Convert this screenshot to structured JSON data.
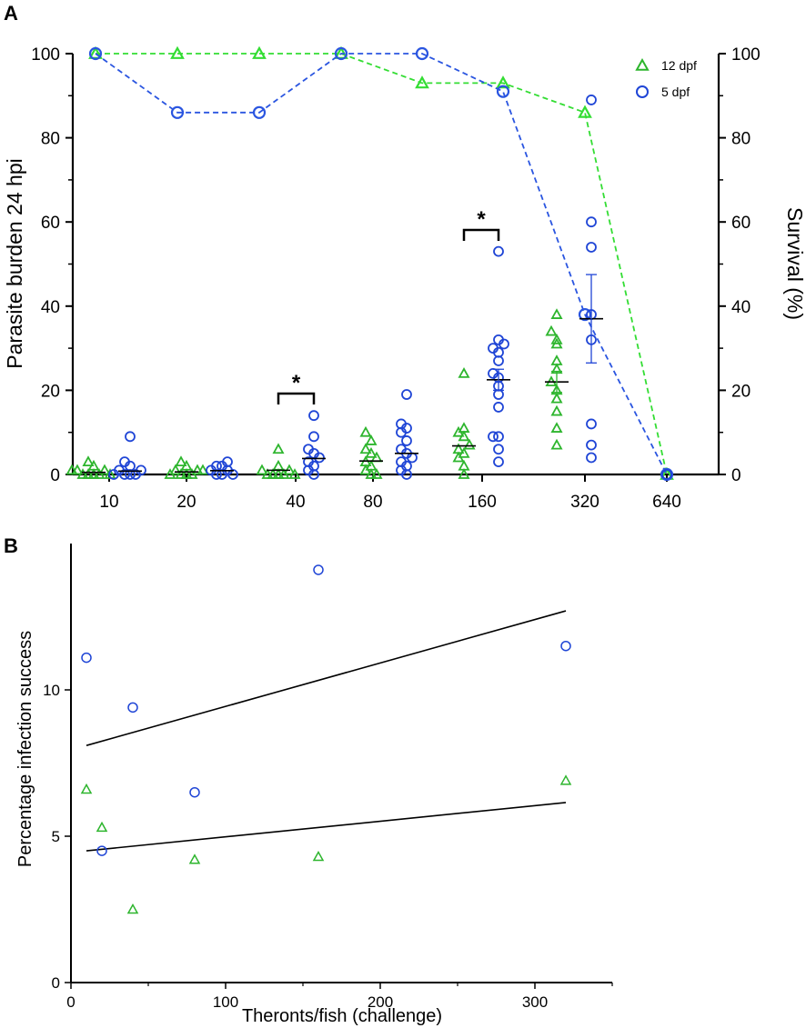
{
  "chart_data": [
    {
      "panel": "A",
      "type": "scatter",
      "xlabel": "",
      "ylabel_left": "Parasite burden 24 hpi",
      "ylabel_right": "Survival (%)",
      "categories": [
        "10",
        "20",
        "40",
        "80",
        "160",
        "320",
        "640"
      ],
      "ylim_left": [
        0,
        100
      ],
      "ylim_right": [
        0,
        100
      ],
      "yticks_left": [
        "0",
        "20",
        "40",
        "60",
        "80",
        "100"
      ],
      "yticks_right": [
        "0",
        "20",
        "40",
        "60",
        "80",
        "100"
      ],
      "legend": [
        {
          "name": "12 dpf",
          "marker": "triangle",
          "color": "#2db52d"
        },
        {
          "name": "5 dpf",
          "marker": "circle",
          "color": "#1f45d6"
        }
      ],
      "colors": {
        "dpf12": "#2db52d",
        "dpf5": "#1f45d6",
        "survival12": "#33dd33",
        "survival5": "#2a55e0"
      },
      "survival": {
        "dpf12": [
          100,
          100,
          100,
          100,
          93,
          93,
          86,
          0
        ],
        "dpf5": [
          100,
          86,
          86,
          100,
          100,
          91,
          38,
          0
        ],
        "dpf12_x": [
          10,
          20,
          40,
          80,
          160,
          183,
          320,
          640
        ],
        "dpf5_x": [
          10,
          20,
          40,
          80,
          160,
          183,
          320,
          640
        ]
      },
      "burden": {
        "dpf12": {
          "10": [
            0,
            0,
            0,
            0,
            1,
            1,
            2,
            3,
            0,
            1
          ],
          "20": [
            0,
            0,
            0,
            1,
            1,
            2,
            3,
            0,
            1
          ],
          "40": [
            0,
            0,
            0,
            0,
            1,
            1,
            2,
            6,
            0
          ],
          "80": [
            0,
            1,
            2,
            3,
            4,
            5,
            6,
            8,
            10,
            0
          ],
          "160": [
            0,
            2,
            4,
            5,
            6,
            7,
            9,
            10,
            11,
            24
          ],
          "320": [
            7,
            11,
            15,
            18,
            20,
            22,
            25,
            27,
            31,
            32,
            34,
            38
          ]
        },
        "dpf5": {
          "10": [
            0,
            0,
            0,
            1,
            1,
            2,
            3,
            9,
            0
          ],
          "20": [
            0,
            0,
            1,
            1,
            2,
            2,
            3,
            0
          ],
          "40": [
            0,
            1,
            2,
            3,
            4,
            5,
            6,
            9,
            14
          ],
          "80": [
            0,
            1,
            2,
            3,
            4,
            5,
            6,
            8,
            10,
            11,
            12,
            19
          ],
          "160": [
            3,
            6,
            9,
            9,
            16,
            19,
            21,
            23,
            24,
            27,
            29,
            30,
            31,
            32,
            53
          ],
          "320": [
            4,
            7,
            12,
            32,
            38,
            54,
            60,
            89
          ],
          "640": [
            0
          ]
        }
      },
      "means": {
        "dpf12": {
          "10": 0.5,
          "20": 0.6,
          "40": 1.0,
          "80": 3.2,
          "160": 6.8,
          "320": 22.0
        },
        "dpf5": {
          "10": 0.8,
          "20": 0.9,
          "40": 3.8,
          "80": 5.0,
          "160": 22.5,
          "320": 37.0
        }
      },
      "sem": {
        "dpf12": {
          "320": 2.5
        },
        "dpf5": {
          "160": 2.5,
          "320": 10.5
        }
      },
      "significance": [
        {
          "group": "40",
          "label": "*"
        },
        {
          "group": "160",
          "label": "*"
        }
      ]
    },
    {
      "panel": "B",
      "type": "scatter",
      "xlabel": "Theronts/fish (challenge)",
      "ylabel": "Percentage infection success",
      "xlim": [
        0,
        350
      ],
      "ylim": [
        0,
        15
      ],
      "xticks": [
        "0",
        "100",
        "200",
        "300"
      ],
      "yticks": [
        "0",
        "5",
        "10"
      ],
      "series": [
        {
          "name": "12 dpf",
          "marker": "triangle",
          "color": "#2db52d",
          "x": [
            10,
            20,
            40,
            80,
            160,
            320
          ],
          "y": [
            6.6,
            5.3,
            2.5,
            4.2,
            4.3,
            6.9
          ],
          "fit": {
            "x": [
              10,
              320
            ],
            "y": [
              4.5,
              6.15
            ]
          }
        },
        {
          "name": "5 dpf",
          "marker": "circle",
          "color": "#1f45d6",
          "x": [
            10,
            20,
            40,
            80,
            160,
            320
          ],
          "y": [
            11.1,
            4.5,
            9.4,
            6.5,
            14.1,
            11.5
          ],
          "fit": {
            "x": [
              10,
              320
            ],
            "y": [
              8.1,
              12.7
            ]
          }
        }
      ]
    }
  ]
}
